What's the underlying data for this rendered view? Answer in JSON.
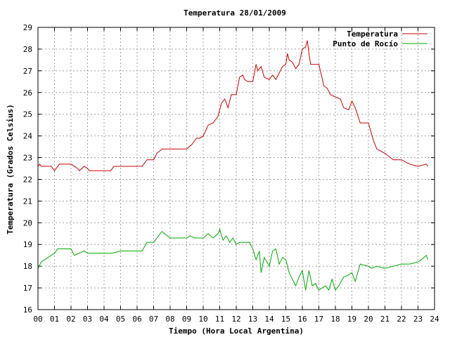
{
  "chart_data": {
    "type": "line",
    "title": "Temperatura 28/01/2009",
    "xlabel": "Tiempo (Hora Local Argentina)",
    "ylabel": "Temperatura (Grados Celsius)",
    "xlim": [
      0,
      24
    ],
    "ylim": [
      16,
      29
    ],
    "grid": true,
    "legend_position": "top-right",
    "x_tick_labels": [
      "00",
      "01",
      "02",
      "03",
      "04",
      "05",
      "06",
      "07",
      "08",
      "09",
      "10",
      "11",
      "12",
      "13",
      "14",
      "15",
      "16",
      "17",
      "18",
      "19",
      "20",
      "21",
      "22",
      "23",
      "24"
    ],
    "y_tick_labels": [
      "16",
      "17",
      "18",
      "19",
      "20",
      "21",
      "22",
      "23",
      "24",
      "25",
      "26",
      "27",
      "28",
      "29"
    ],
    "series": [
      {
        "name": "Temperatura",
        "color": "#cc0000",
        "x": [
          0,
          0.1,
          0.2,
          0.4,
          0.8,
          1.0,
          1.3,
          1.5,
          2.0,
          2.4,
          2.5,
          2.8,
          3.0,
          3.1,
          3.2,
          3.6,
          4.0,
          4.4,
          4.6,
          5.0,
          5.5,
          6.0,
          6.3,
          6.6,
          7.0,
          7.2,
          7.5,
          8.0,
          8.5,
          9.0,
          9.3,
          9.6,
          9.8,
          10.0,
          10.3,
          10.6,
          10.9,
          11.0,
          11.1,
          11.3,
          11.5,
          11.7,
          12.0,
          12.2,
          12.4,
          12.5,
          12.7,
          13.0,
          13.2,
          13.3,
          13.5,
          13.7,
          14.0,
          14.2,
          14.4,
          14.6,
          14.8,
          15.0,
          15.1,
          15.2,
          15.4,
          15.6,
          15.8,
          16.0,
          16.2,
          16.3,
          16.4,
          16.5,
          16.7,
          17.0,
          17.3,
          17.5,
          17.7,
          18.0,
          18.3,
          18.5,
          18.8,
          19.0,
          19.2,
          19.5,
          20.0,
          20.3,
          20.5,
          21.0,
          21.5,
          22.0,
          22.5,
          23.0,
          23.5,
          23.6
        ],
        "values": [
          22.6,
          22.7,
          22.6,
          22.6,
          22.6,
          22.4,
          22.7,
          22.7,
          22.7,
          22.5,
          22.4,
          22.6,
          22.5,
          22.4,
          22.4,
          22.4,
          22.4,
          22.4,
          22.6,
          22.6,
          22.6,
          22.6,
          22.6,
          22.9,
          22.9,
          23.2,
          23.4,
          23.4,
          23.4,
          23.4,
          23.6,
          23.9,
          23.9,
          24.0,
          24.5,
          24.6,
          24.9,
          25.2,
          25.5,
          25.7,
          25.3,
          25.9,
          25.9,
          26.7,
          26.8,
          26.6,
          26.5,
          26.5,
          27.3,
          27.0,
          27.2,
          26.7,
          26.6,
          26.8,
          26.6,
          26.9,
          27.2,
          27.3,
          27.8,
          27.5,
          27.4,
          27.1,
          27.3,
          28.0,
          28.1,
          28.4,
          27.8,
          27.3,
          27.3,
          27.3,
          26.3,
          26.2,
          25.9,
          25.8,
          25.7,
          25.3,
          25.2,
          25.6,
          25.3,
          24.6,
          24.6,
          23.8,
          23.4,
          23.2,
          22.9,
          22.9,
          22.7,
          22.6,
          22.7,
          22.6
        ]
      },
      {
        "name": "Punto de Rocío",
        "color": "#00aa00",
        "x": [
          0,
          0.2,
          0.4,
          0.6,
          0.8,
          1.0,
          1.2,
          1.5,
          2.0,
          2.2,
          2.5,
          2.8,
          3.0,
          3.2,
          3.5,
          4.0,
          4.5,
          5.0,
          5.5,
          6.0,
          6.3,
          6.6,
          7.0,
          7.2,
          7.5,
          8.0,
          8.5,
          9.0,
          9.2,
          9.5,
          9.8,
          10.0,
          10.3,
          10.6,
          10.9,
          11.0,
          11.2,
          11.4,
          11.6,
          11.8,
          12.0,
          12.2,
          12.5,
          12.8,
          13.0,
          13.2,
          13.4,
          13.5,
          13.7,
          14.0,
          14.2,
          14.4,
          14.6,
          14.8,
          15.0,
          15.2,
          15.4,
          15.6,
          15.8,
          16.0,
          16.2,
          16.4,
          16.6,
          16.8,
          17.0,
          17.2,
          17.4,
          17.6,
          17.8,
          18.0,
          18.2,
          18.5,
          18.8,
          19.0,
          19.2,
          19.5,
          20.0,
          20.2,
          20.5,
          21.0,
          21.5,
          22.0,
          22.5,
          23.0,
          23.2,
          23.5,
          23.6
        ],
        "values": [
          17.9,
          18.2,
          18.3,
          18.4,
          18.5,
          18.6,
          18.8,
          18.8,
          18.8,
          18.5,
          18.6,
          18.7,
          18.6,
          18.6,
          18.6,
          18.6,
          18.6,
          18.7,
          18.7,
          18.7,
          18.7,
          19.1,
          19.1,
          19.3,
          19.6,
          19.3,
          19.3,
          19.3,
          19.4,
          19.3,
          19.3,
          19.3,
          19.5,
          19.3,
          19.5,
          19.7,
          19.2,
          19.4,
          19.1,
          19.3,
          19.0,
          19.1,
          19.1,
          19.1,
          18.8,
          18.3,
          18.7,
          17.7,
          18.4,
          18.0,
          18.7,
          18.8,
          18.1,
          18.4,
          18.3,
          17.7,
          17.4,
          17.1,
          17.5,
          17.8,
          16.9,
          17.8,
          17.1,
          17.2,
          16.9,
          17.0,
          17.1,
          16.9,
          17.4,
          16.9,
          17.1,
          17.5,
          17.6,
          17.7,
          17.3,
          18.1,
          18.0,
          17.9,
          18.0,
          17.9,
          18.0,
          18.1,
          18.1,
          18.2,
          18.3,
          18.5,
          18.3
        ]
      }
    ]
  }
}
